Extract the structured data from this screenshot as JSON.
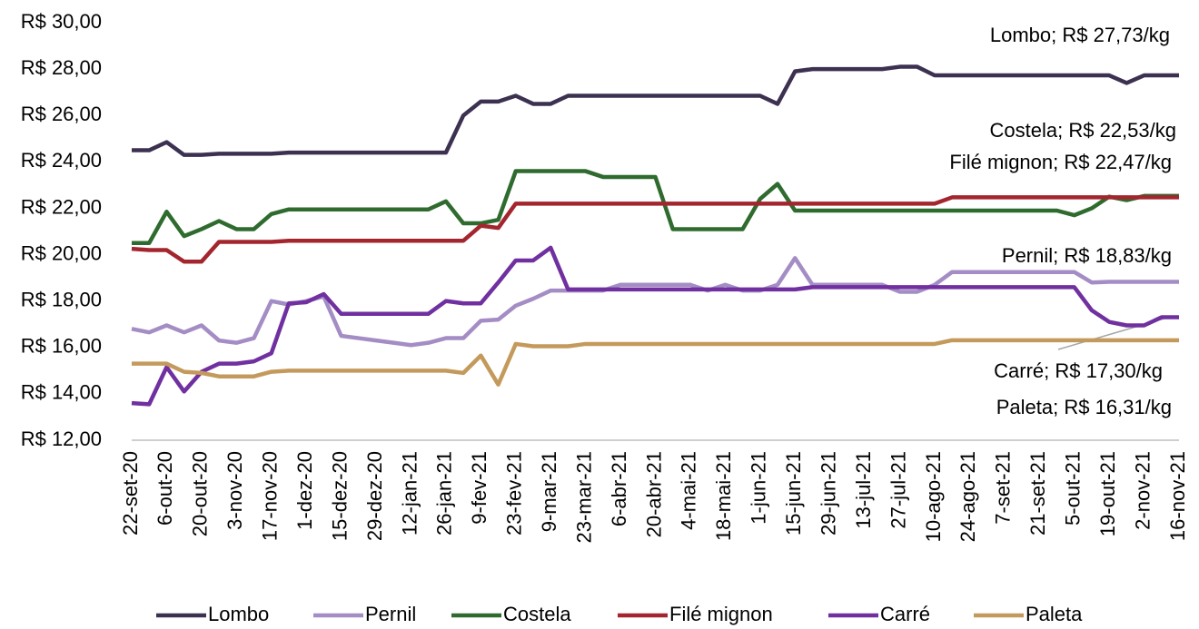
{
  "chart_data": {
    "type": "line",
    "categories": [
      "22-set-20",
      null,
      "6-out-20",
      null,
      "20-out-20",
      null,
      "3-nov-20",
      null,
      "17-nov-20",
      null,
      "1-dez-20",
      null,
      "15-dez-20",
      null,
      "29-dez-20",
      null,
      "12-jan-21",
      null,
      "26-jan-21",
      null,
      "9-fev-21",
      null,
      "23-fev-21",
      null,
      "9-mar-21",
      null,
      "23-mar-21",
      null,
      "6-abr-21",
      null,
      "20-abr-21",
      null,
      "4-mai-21",
      null,
      "18-mai-21",
      null,
      "1-jun-21",
      null,
      "15-jun-21",
      null,
      "29-jun-21",
      null,
      "13-jul-21",
      null,
      "27-jul-21",
      null,
      "10-ago-21",
      null,
      "24-ago-21",
      null,
      "7-set-21",
      null,
      "21-set-21",
      null,
      "5-out-21",
      null,
      "19-out-21",
      null,
      "2-nov-21",
      null,
      "16-nov-21"
    ],
    "series": [
      {
        "name": "Lombo",
        "color": "#3c3150",
        "values": [
          24.5,
          24.5,
          24.85,
          24.3,
          24.3,
          24.35,
          24.35,
          24.35,
          24.35,
          24.4,
          24.4,
          24.4,
          24.4,
          24.4,
          24.4,
          24.4,
          24.4,
          24.4,
          24.4,
          26.0,
          26.6,
          26.6,
          26.85,
          26.5,
          26.5,
          26.85,
          26.85,
          26.85,
          26.85,
          26.85,
          26.85,
          26.85,
          26.85,
          26.85,
          26.85,
          26.85,
          26.85,
          26.5,
          27.9,
          28.0,
          28.0,
          28.0,
          28.0,
          28.0,
          28.1,
          28.1,
          27.73,
          27.73,
          27.73,
          27.73,
          27.73,
          27.73,
          27.73,
          27.73,
          27.73,
          27.73,
          27.73,
          27.4,
          27.73,
          27.73,
          27.73
        ]
      },
      {
        "name": "Pernil",
        "color": "#a48dc4",
        "values": [
          16.8,
          16.65,
          16.95,
          16.65,
          16.95,
          16.3,
          16.2,
          16.4,
          18.0,
          17.85,
          18.0,
          18.2,
          16.5,
          16.4,
          16.3,
          16.2,
          16.1,
          16.2,
          16.4,
          16.4,
          17.15,
          17.2,
          17.8,
          18.1,
          18.45,
          18.45,
          18.45,
          18.45,
          18.7,
          18.7,
          18.7,
          18.7,
          18.7,
          18.45,
          18.7,
          18.45,
          18.45,
          18.7,
          19.85,
          18.7,
          18.7,
          18.7,
          18.7,
          18.7,
          18.4,
          18.4,
          18.7,
          19.25,
          19.25,
          19.25,
          19.25,
          19.25,
          19.25,
          19.25,
          19.25,
          18.8,
          18.83,
          18.83,
          18.83,
          18.83,
          18.83
        ]
      },
      {
        "name": "Costela",
        "color": "#2f6b2f",
        "values": [
          20.5,
          20.5,
          21.85,
          20.8,
          21.1,
          21.45,
          21.1,
          21.1,
          21.75,
          21.95,
          21.95,
          21.95,
          21.95,
          21.95,
          21.95,
          21.95,
          21.95,
          21.95,
          22.3,
          21.35,
          21.35,
          21.5,
          23.6,
          23.6,
          23.6,
          23.6,
          23.6,
          23.35,
          23.35,
          23.35,
          23.35,
          21.1,
          21.1,
          21.1,
          21.1,
          21.1,
          22.4,
          23.05,
          21.9,
          21.9,
          21.9,
          21.9,
          21.9,
          21.9,
          21.9,
          21.9,
          21.9,
          21.9,
          21.9,
          21.9,
          21.9,
          21.9,
          21.9,
          21.9,
          21.7,
          22.0,
          22.5,
          22.35,
          22.53,
          22.53,
          22.53
        ]
      },
      {
        "name": "Filé mignon",
        "color": "#a3262e",
        "values": [
          20.25,
          20.2,
          20.2,
          19.7,
          19.7,
          20.55,
          20.55,
          20.55,
          20.55,
          20.6,
          20.6,
          20.6,
          20.6,
          20.6,
          20.6,
          20.6,
          20.6,
          20.6,
          20.6,
          20.6,
          21.25,
          21.15,
          22.2,
          22.2,
          22.2,
          22.2,
          22.2,
          22.2,
          22.2,
          22.2,
          22.2,
          22.2,
          22.2,
          22.2,
          22.2,
          22.2,
          22.2,
          22.2,
          22.2,
          22.2,
          22.2,
          22.2,
          22.2,
          22.2,
          22.2,
          22.2,
          22.2,
          22.47,
          22.47,
          22.47,
          22.47,
          22.47,
          22.47,
          22.47,
          22.47,
          22.47,
          22.47,
          22.47,
          22.47,
          22.47,
          22.47
        ]
      },
      {
        "name": "Carré",
        "color": "#7030a0",
        "values": [
          13.6,
          13.55,
          15.15,
          14.1,
          14.95,
          15.3,
          15.3,
          15.4,
          15.75,
          17.9,
          17.95,
          18.3,
          17.45,
          17.45,
          17.45,
          17.45,
          17.45,
          17.45,
          18.0,
          17.9,
          17.9,
          18.8,
          19.75,
          19.75,
          20.3,
          18.5,
          18.5,
          18.5,
          18.5,
          18.5,
          18.5,
          18.5,
          18.5,
          18.5,
          18.5,
          18.5,
          18.5,
          18.5,
          18.5,
          18.6,
          18.6,
          18.6,
          18.6,
          18.6,
          18.6,
          18.6,
          18.6,
          18.6,
          18.6,
          18.6,
          18.6,
          18.6,
          18.6,
          18.6,
          18.6,
          17.6,
          17.1,
          16.95,
          16.95,
          17.3,
          17.3
        ]
      },
      {
        "name": "Paleta",
        "color": "#c49a5c",
        "values": [
          15.3,
          15.3,
          15.3,
          14.95,
          14.9,
          14.75,
          14.75,
          14.75,
          14.95,
          15.0,
          15.0,
          15.0,
          15.0,
          15.0,
          15.0,
          15.0,
          15.0,
          15.0,
          15.0,
          14.9,
          15.65,
          14.4,
          16.15,
          16.05,
          16.05,
          16.05,
          16.15,
          16.15,
          16.15,
          16.15,
          16.15,
          16.15,
          16.15,
          16.15,
          16.15,
          16.15,
          16.15,
          16.15,
          16.15,
          16.15,
          16.15,
          16.15,
          16.15,
          16.15,
          16.15,
          16.15,
          16.15,
          16.31,
          16.31,
          16.31,
          16.31,
          16.31,
          16.31,
          16.31,
          16.31,
          16.31,
          16.31,
          16.31,
          16.31,
          16.31,
          16.31
        ]
      }
    ],
    "ylim": [
      12,
      30
    ],
    "yticks": [
      {
        "value": 12,
        "label": "R$ 12,00"
      },
      {
        "value": 14,
        "label": "R$ 14,00"
      },
      {
        "value": 16,
        "label": "R$ 16,00"
      },
      {
        "value": 18,
        "label": "R$ 18,00"
      },
      {
        "value": 20,
        "label": "R$ 20,00"
      },
      {
        "value": 22,
        "label": "R$ 22,00"
      },
      {
        "value": 24,
        "label": "R$ 24,00"
      },
      {
        "value": 26,
        "label": "R$ 26,00"
      },
      {
        "value": 28,
        "label": "R$ 28,00"
      },
      {
        "value": 30,
        "label": "R$ 30,00"
      }
    ],
    "annotations": [
      "Lombo; R$ 27,73/kg",
      "Costela; R$ 22,53/kg",
      "Filé mignon; R$ 22,47/kg",
      "Pernil; R$ 18,83/kg",
      "Carré; R$ 17,30/kg",
      "Paleta; R$ 16,31/kg"
    ],
    "legend": "bottom"
  }
}
